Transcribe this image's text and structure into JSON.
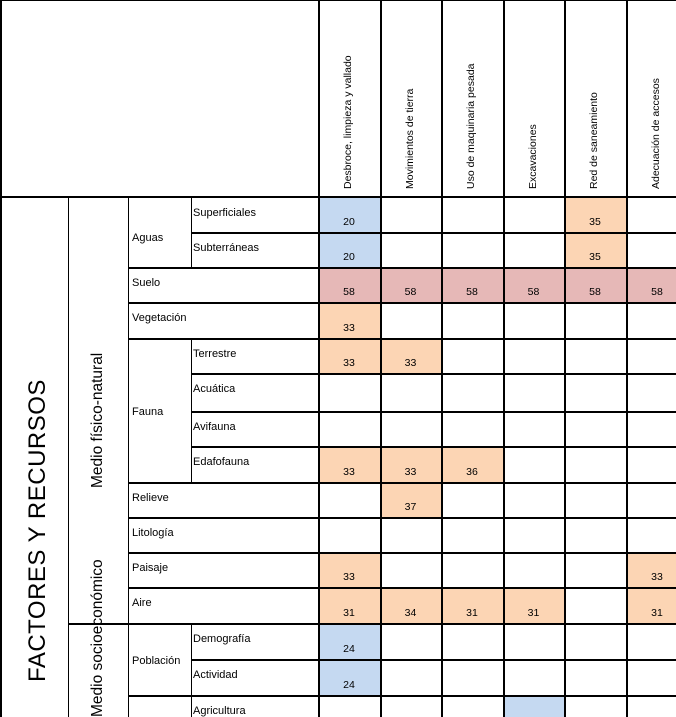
{
  "colors": {
    "blue": "#c5d9f1",
    "orange": "#fcd5b4",
    "red": "#e6b8b7"
  },
  "group_title": "FACTORES Y RECURSOS",
  "subgroups": [
    "Medio físico-natural",
    "Medio socioeconómico"
  ],
  "columns": [
    "Desbroce, limpieza y vallado",
    "Movimientos de tierra",
    "Uso de maquinaria pesada",
    "Excavaciones",
    "Red de saneamiento",
    "Adecuación de accesos"
  ],
  "categories": {
    "aguas": "Aguas",
    "suelo": "Suelo",
    "vegetacion": "Vegetación",
    "fauna": "Fauna",
    "relieve": "Relieve",
    "litologia": "Litología",
    "paisaje": "Paisaje",
    "aire": "Aire",
    "poblacion": "Población"
  },
  "rows": [
    {
      "label": "Superficiales",
      "values": [
        "20",
        "",
        "",
        "",
        "35",
        ""
      ],
      "colors": [
        "blue",
        "",
        "",
        "",
        "orange",
        ""
      ]
    },
    {
      "label": "Subterráneas",
      "values": [
        "20",
        "",
        "",
        "",
        "35",
        ""
      ],
      "colors": [
        "blue",
        "",
        "",
        "",
        "orange",
        ""
      ]
    },
    {
      "label": "Suelo",
      "values": [
        "58",
        "58",
        "58",
        "58",
        "58",
        "58"
      ],
      "colors": [
        "red",
        "red",
        "red",
        "red",
        "red",
        "red"
      ]
    },
    {
      "label": "Vegetación",
      "values": [
        "33",
        "",
        "",
        "",
        "",
        ""
      ],
      "colors": [
        "orange",
        "",
        "",
        "",
        "",
        ""
      ]
    },
    {
      "label": "Terrestre",
      "values": [
        "33",
        "33",
        "",
        "",
        "",
        ""
      ],
      "colors": [
        "orange",
        "orange",
        "",
        "",
        "",
        ""
      ]
    },
    {
      "label": "Acuática",
      "values": [
        "",
        "",
        "",
        "",
        "",
        ""
      ],
      "colors": [
        "",
        "",
        "",
        "",
        "",
        ""
      ]
    },
    {
      "label": "Avifauna",
      "values": [
        "",
        "",
        "",
        "",
        "",
        ""
      ],
      "colors": [
        "",
        "",
        "",
        "",
        "",
        ""
      ]
    },
    {
      "label": "Edafofauna",
      "values": [
        "33",
        "33",
        "36",
        "",
        "",
        ""
      ],
      "colors": [
        "orange",
        "orange",
        "orange",
        "",
        "",
        ""
      ]
    },
    {
      "label": "Relieve",
      "values": [
        "",
        "37",
        "",
        "",
        "",
        ""
      ],
      "colors": [
        "",
        "orange",
        "",
        "",
        "",
        ""
      ]
    },
    {
      "label": "Litología",
      "values": [
        "",
        "",
        "",
        "",
        "",
        ""
      ],
      "colors": [
        "",
        "",
        "",
        "",
        "",
        ""
      ]
    },
    {
      "label": "Paisaje",
      "values": [
        "33",
        "",
        "",
        "",
        "",
        "33"
      ],
      "colors": [
        "orange",
        "",
        "",
        "",
        "",
        "orange"
      ]
    },
    {
      "label": "Aire",
      "values": [
        "31",
        "34",
        "31",
        "31",
        "",
        "31"
      ],
      "colors": [
        "orange",
        "orange",
        "orange",
        "orange",
        "",
        "orange"
      ]
    },
    {
      "label": "Demografía",
      "values": [
        "24",
        "",
        "",
        "",
        "",
        ""
      ],
      "colors": [
        "blue",
        "",
        "",
        "",
        "",
        ""
      ]
    },
    {
      "label": "Actividad",
      "values": [
        "24",
        "",
        "",
        "",
        "",
        ""
      ],
      "colors": [
        "blue",
        "",
        "",
        "",
        "",
        ""
      ]
    },
    {
      "label": "Agricultura",
      "values": [
        "",
        "",
        "",
        "",
        "",
        ""
      ],
      "colors": [
        "",
        "",
        "",
        "blue",
        "",
        ""
      ]
    }
  ]
}
